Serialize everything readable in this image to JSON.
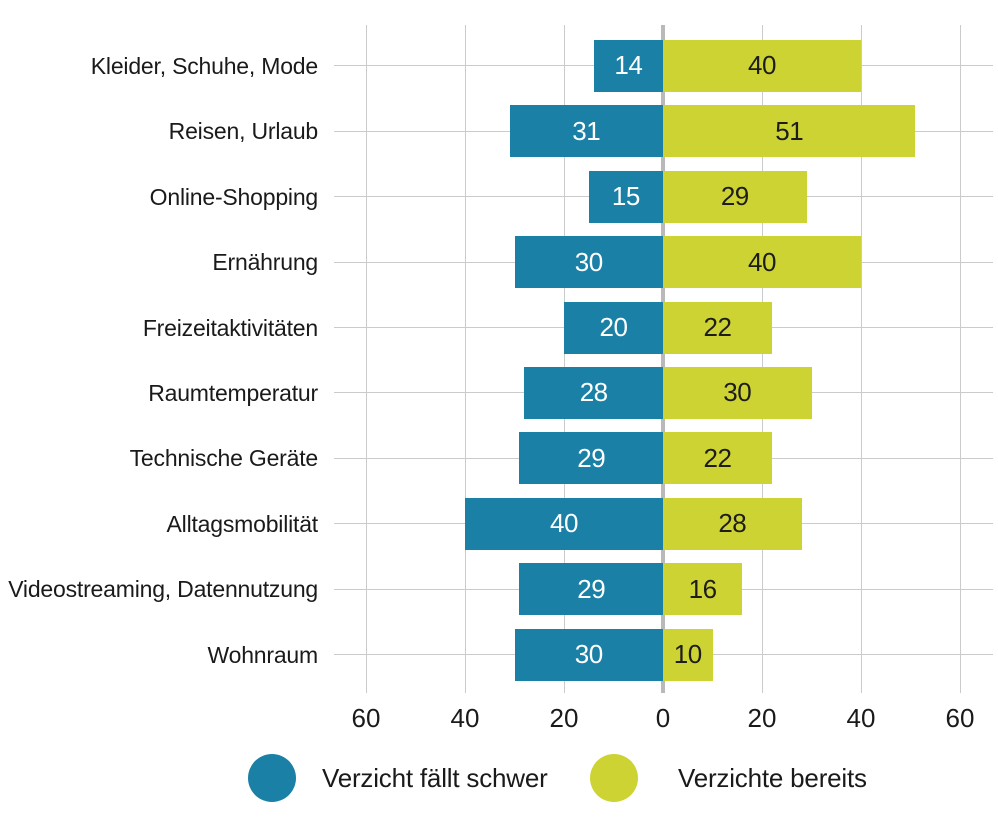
{
  "chart_data": {
    "type": "bar",
    "variant": "horizontal-diverging",
    "title": "",
    "categories": [
      "Kleider, Schuhe, Mode",
      "Reisen, Urlaub",
      "Online-Shopping",
      "Ernährung",
      "Freizeitaktivitäten",
      "Raumtemperatur",
      "Technische Geräte",
      "Alltagsmobilität",
      "Videostreaming, Datennutzung",
      "Wohnraum"
    ],
    "series": [
      {
        "name": "Verzicht fällt schwer",
        "direction": "left",
        "color": "#1a80a6",
        "value_text_color": "#ffffff",
        "values": [
          14,
          31,
          15,
          30,
          20,
          28,
          29,
          40,
          29,
          30
        ]
      },
      {
        "name": "Verzichte bereits",
        "direction": "right",
        "color": "#cdd333",
        "value_text_color": "#1d1d1b",
        "values": [
          40,
          51,
          29,
          40,
          22,
          30,
          22,
          28,
          16,
          10
        ]
      }
    ],
    "x_axis": {
      "tick_values": [
        -60,
        -40,
        -20,
        0,
        20,
        40,
        60
      ],
      "tick_labels": [
        "60",
        "40",
        "20",
        "0",
        "20",
        "40",
        "60"
      ],
      "range": [
        -67,
        67
      ]
    },
    "grid": true,
    "legend_position": "bottom"
  },
  "legend": {
    "items": [
      {
        "label": "Verzicht fällt schwer",
        "color": "#1a80a6"
      },
      {
        "label": "Verzichte bereits",
        "color": "#cdd333"
      }
    ]
  },
  "colors": {
    "background": "#ffffff",
    "gridline": "#cbcbcb",
    "zero_line": "#b9b9b9",
    "text": "#1a1a1a"
  }
}
